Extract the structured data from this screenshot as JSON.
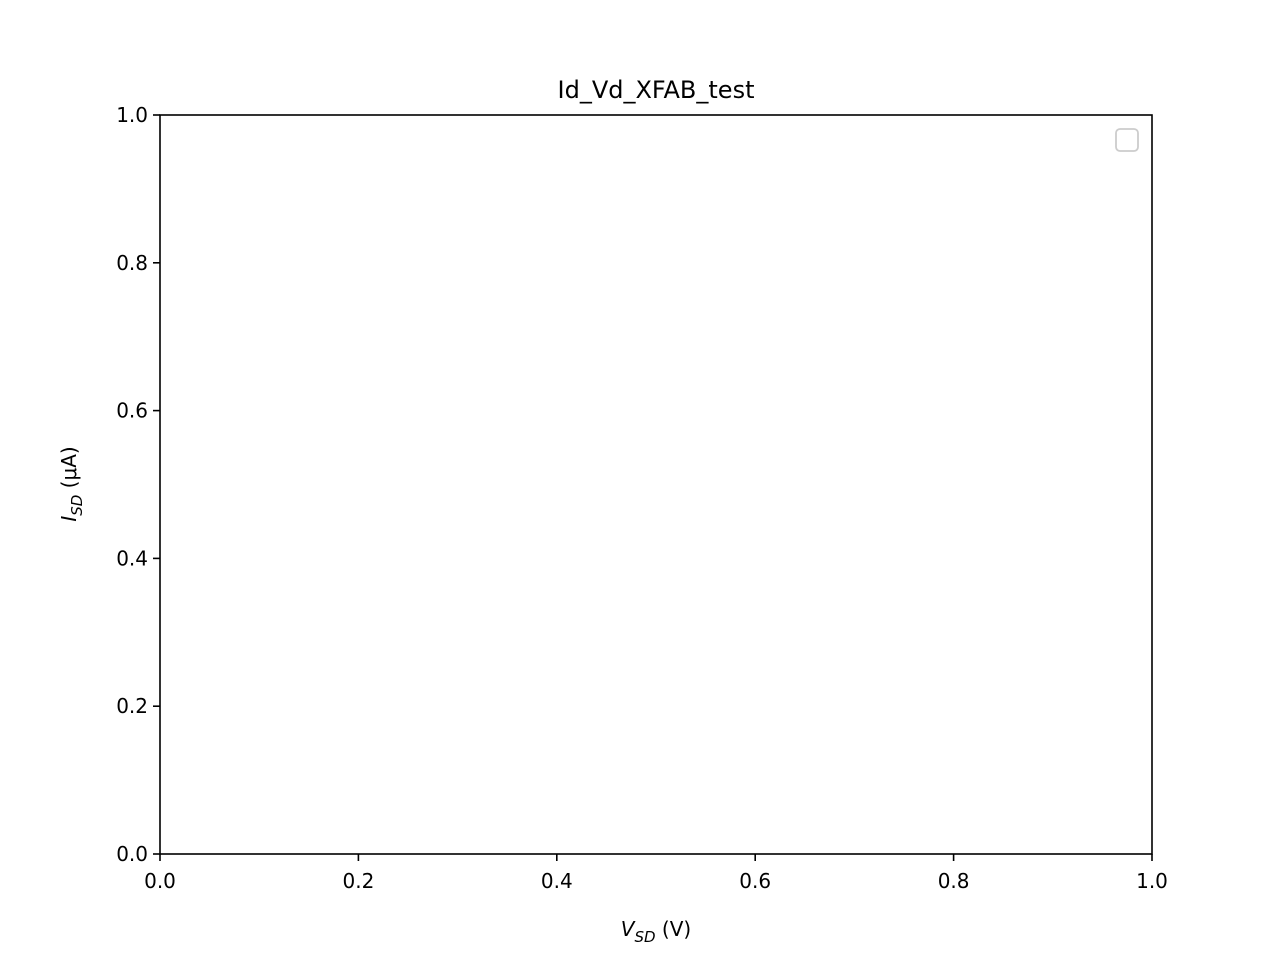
{
  "chart_data": {
    "type": "line",
    "title": "Id_Vd_XFAB_test",
    "xlabel": {
      "main": "V",
      "sub": "SD",
      "unit": " (V)"
    },
    "ylabel": {
      "main": "I",
      "sub": "SD",
      "unit": " (μA)"
    },
    "xlim": [
      0.0,
      1.0
    ],
    "ylim": [
      0.0,
      1.0
    ],
    "xticks": [
      0.0,
      0.2,
      0.4,
      0.6,
      0.8,
      1.0
    ],
    "yticks": [
      0.0,
      0.2,
      0.4,
      0.6,
      0.8,
      1.0
    ],
    "xtick_labels": [
      "0.0",
      "0.2",
      "0.4",
      "0.6",
      "0.8",
      "1.0"
    ],
    "ytick_labels": [
      "0.0",
      "0.2",
      "0.4",
      "0.6",
      "0.8",
      "1.0"
    ],
    "series": [],
    "grid": false,
    "legend": {
      "placement": "top-right",
      "entries": []
    },
    "colors": {
      "axes": "#000000",
      "background": "#ffffff",
      "legend_border": "#cccccc"
    }
  }
}
